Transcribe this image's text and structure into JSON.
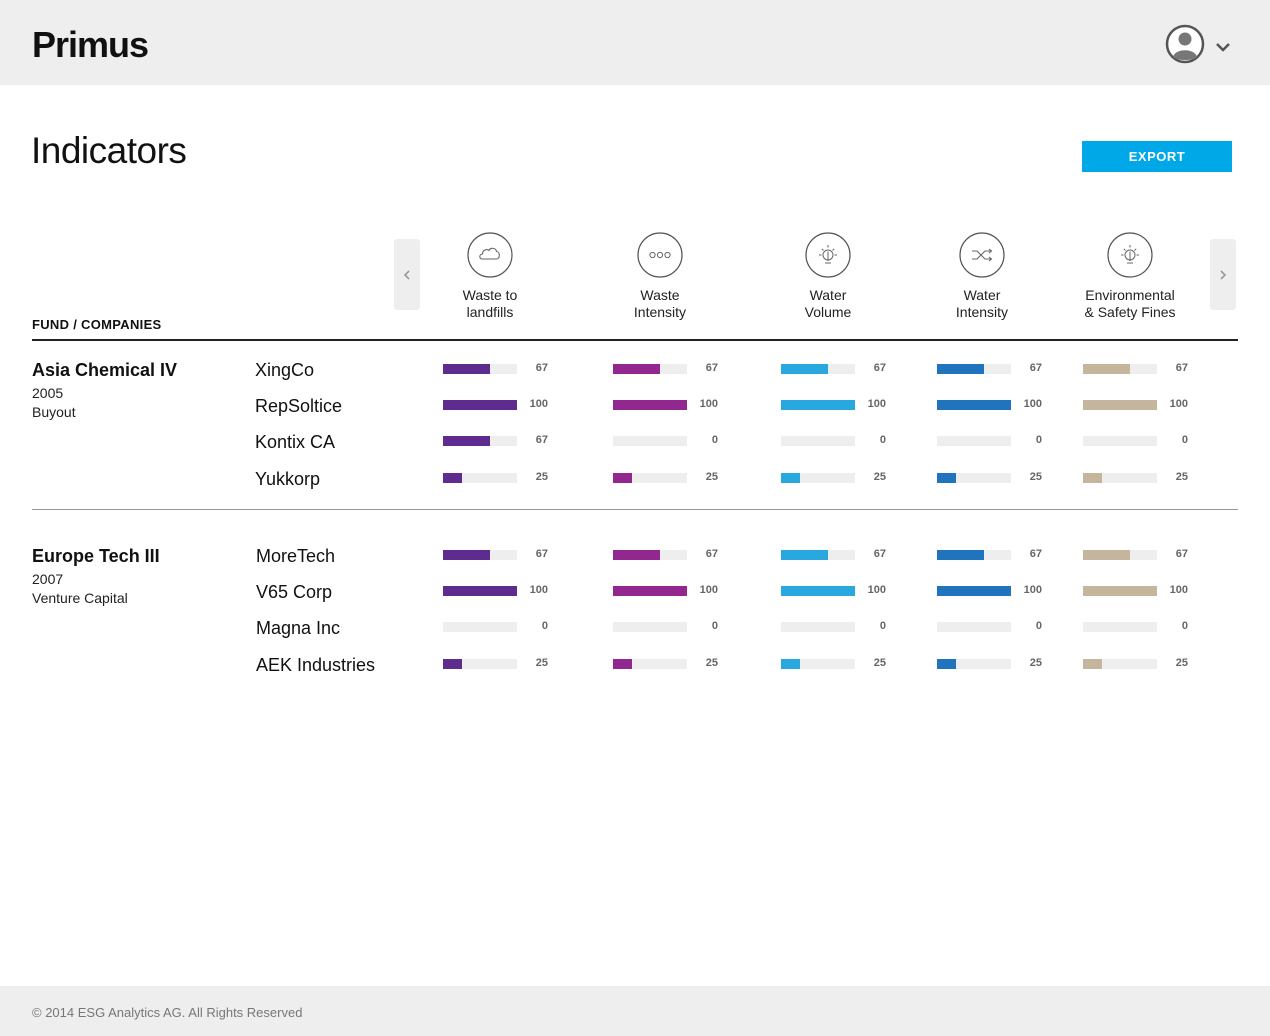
{
  "header": {
    "brand": "Primus"
  },
  "page": {
    "title": "Indicators",
    "export_label": "EXPORT"
  },
  "table": {
    "left_header": "FUND / COMPANIES",
    "columns": [
      {
        "line1": "Waste to",
        "line2": "landfills",
        "icon": "cloud-icon",
        "color": "#5e2b8f"
      },
      {
        "line1": "Waste",
        "line2": "Intensity",
        "icon": "dots-icon",
        "color": "#92278f"
      },
      {
        "line1": "Water",
        "line2": "Volume",
        "icon": "bulb-icon",
        "color": "#29a8e0"
      },
      {
        "line1": "Water",
        "line2": "Intensity",
        "icon": "shuffle-icon",
        "color": "#1f74bd"
      },
      {
        "line1": "Environmental",
        "line2": "& Safety Fines",
        "icon": "bulb-icon",
        "color": "#c4b59c"
      }
    ],
    "funds": [
      {
        "name": "Asia Chemical IV",
        "year": "2005",
        "type": "Buyout",
        "companies": [
          {
            "name": "XingCo",
            "values": [
              67,
              67,
              67,
              67,
              67
            ]
          },
          {
            "name": "RepSoltice",
            "values": [
              100,
              100,
              100,
              100,
              100
            ]
          },
          {
            "name": "Kontix CA",
            "values": [
              67,
              0,
              0,
              0,
              0
            ]
          },
          {
            "name": "Yukkorp",
            "values": [
              25,
              25,
              25,
              25,
              25
            ]
          }
        ]
      },
      {
        "name": "Europe Tech III",
        "year": "2007",
        "type": "Venture Capital",
        "companies": [
          {
            "name": "MoreTech",
            "values": [
              67,
              67,
              67,
              67,
              67
            ]
          },
          {
            "name": "V65 Corp",
            "values": [
              100,
              100,
              100,
              100,
              100
            ]
          },
          {
            "name": "Magna Inc",
            "values": [
              0,
              0,
              0,
              0,
              0
            ]
          },
          {
            "name": "AEK Industries",
            "values": [
              25,
              25,
              25,
              25,
              25
            ]
          }
        ]
      }
    ]
  },
  "footer": {
    "copyright": "© 2014 ESG Analytics AG. All Rights Reserved"
  }
}
